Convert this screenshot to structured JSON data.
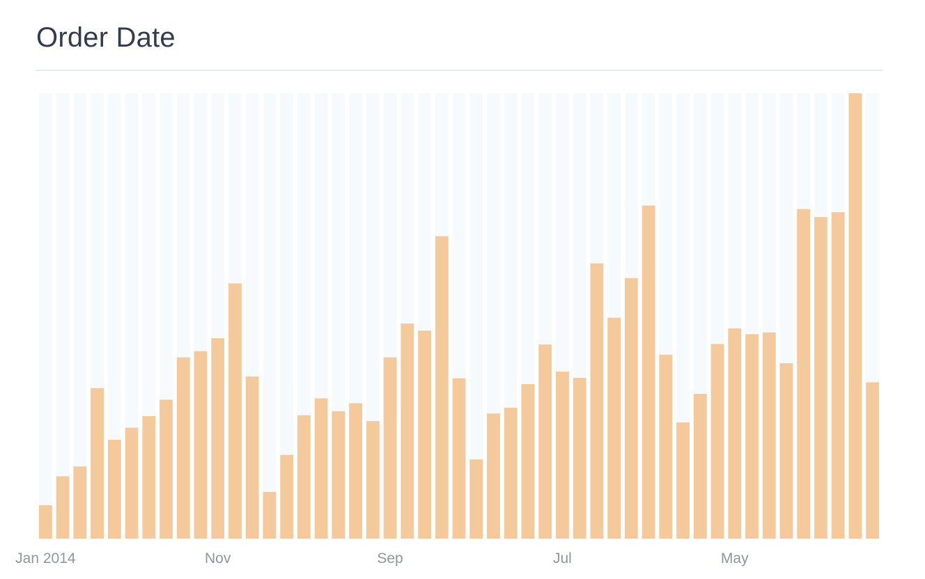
{
  "card": {
    "title": "Order Date"
  },
  "chart_data": {
    "type": "bar",
    "title": "Order Date",
    "xlabel": "",
    "ylabel": "",
    "grid": false,
    "colors": {
      "bar": "#f4c99b",
      "band": "#f7fafd"
    },
    "x_tick_labels": [
      {
        "index": 0,
        "label": "Jan 2014"
      },
      {
        "index": 10,
        "label": "Nov"
      },
      {
        "index": 20,
        "label": "Sep"
      },
      {
        "index": 30,
        "label": "Jul"
      },
      {
        "index": 40,
        "label": "May"
      }
    ],
    "categories": [
      "2014-01",
      "2014-02",
      "2014-03",
      "2014-04",
      "2014-05",
      "2014-06",
      "2014-07",
      "2014-08",
      "2014-09",
      "2014-10",
      "2014-11",
      "2014-12",
      "2015-01",
      "2015-02",
      "2015-03",
      "2015-04",
      "2015-05",
      "2015-06",
      "2015-07",
      "2015-08",
      "2015-09",
      "2015-10",
      "2015-11",
      "2015-12",
      "2016-01",
      "2016-02",
      "2016-03",
      "2016-04",
      "2016-05",
      "2016-06",
      "2016-07",
      "2016-08",
      "2016-09",
      "2016-10",
      "2016-11",
      "2016-12",
      "2017-01",
      "2017-02",
      "2017-03",
      "2017-04",
      "2017-05",
      "2017-06",
      "2017-07",
      "2017-08",
      "2017-09",
      "2017-10",
      "2017-11",
      "2017-12",
      "2018-01"
    ],
    "values": [
      7.5,
      14,
      16.2,
      33.8,
      22.2,
      24.9,
      27.5,
      31.2,
      40.7,
      42.1,
      45,
      57.3,
      36.4,
      10.5,
      18.8,
      27.7,
      31.5,
      28.6,
      30.4,
      26.4,
      40.7,
      48.3,
      46.7,
      67.9,
      36,
      17.8,
      28.1,
      29.4,
      34.7,
      43.6,
      37.5,
      36.1,
      61.8,
      49.6,
      58.5,
      74.8,
      41.3,
      26.1,
      32.5,
      43.7,
      47.2,
      45.9,
      46.3,
      39.4,
      74,
      72.2,
      73.3,
      100,
      35.1
    ],
    "ylim": [
      0,
      100
    ]
  }
}
